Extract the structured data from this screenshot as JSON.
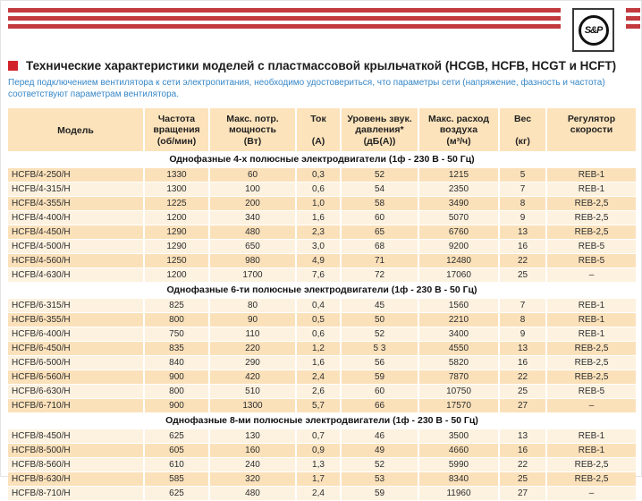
{
  "logo": {
    "text": "S&P"
  },
  "title": "Технические характеристики моделей с пластмассовой крыльчаткой (HCGB, HCFB, HCGT и HCFT)",
  "subtitle": "Перед подключением вентилятора к сети электропитания, необходимо удостовериться, что параметры сети (напряжение, фазность и частота) соответствуют параметрам вентилятора.",
  "colors": {
    "stripe_red": "#c23a3e",
    "bullet_red": "#d2232a",
    "subtitle_blue": "#3787c7",
    "header_bg": "#fce3bb",
    "row_peach": "#fbe1ba",
    "row_cream": "#fdf2e0"
  },
  "table": {
    "columns": [
      {
        "lines": [
          "Модель"
        ],
        "unit": ""
      },
      {
        "lines": [
          "Частота",
          "вращения"
        ],
        "unit": "(об/мин)"
      },
      {
        "lines": [
          "Макс. потр.",
          "мощность"
        ],
        "unit": "(Вт)"
      },
      {
        "lines": [
          "Ток"
        ],
        "unit": "(А)"
      },
      {
        "lines": [
          "Уровень звук.",
          "давления*"
        ],
        "unit": "(дБ(А))"
      },
      {
        "lines": [
          "Макс. расход",
          "воздуха"
        ],
        "unit": "(м³/ч)"
      },
      {
        "lines": [
          "Вес"
        ],
        "unit": "(кг)"
      },
      {
        "lines": [
          "Регулятор",
          "скорости"
        ],
        "unit": ""
      }
    ],
    "sections": [
      {
        "header": "Однофазные 4-х полюсные электродвигатели (1ф - 230 В - 50 Гц)",
        "rows": [
          [
            "HCFB/4-250/H",
            "1330",
            "60",
            "0,3",
            "52",
            "1215",
            "5",
            "REB-1"
          ],
          [
            "HCFB/4-315/H",
            "1300",
            "100",
            "0,6",
            "54",
            "2350",
            "7",
            "REB-1"
          ],
          [
            "HCFB/4-355/H",
            "1225",
            "200",
            "1,0",
            "58",
            "3490",
            "8",
            "REB-2,5"
          ],
          [
            "HCFB/4-400/H",
            "1200",
            "340",
            "1,6",
            "60",
            "5070",
            "9",
            "REB-2,5"
          ],
          [
            "HCFB/4-450/H",
            "1290",
            "480",
            "2,3",
            "65",
            "6760",
            "13",
            "REB-2,5"
          ],
          [
            "HCFB/4-500/H",
            "1290",
            "650",
            "3,0",
            "68",
            "9200",
            "16",
            "REB-5"
          ],
          [
            "HCFB/4-560/H",
            "1250",
            "980",
            "4,9",
            "71",
            "12480",
            "22",
            "REB-5"
          ],
          [
            "HCFB/4-630/H",
            "1200",
            "1700",
            "7,6",
            "72",
            "17060",
            "25",
            "–"
          ]
        ]
      },
      {
        "header": "Однофазные 6-ти полюсные электродвигатели (1ф - 230 В - 50 Гц)",
        "rows": [
          [
            "HCFB/6-315/H",
            "825",
            "80",
            "0,4",
            "45",
            "1560",
            "7",
            "REB-1"
          ],
          [
            "HCFB/6-355/H",
            "800",
            "90",
            "0,5",
            "50",
            "2210",
            "8",
            "REB-1"
          ],
          [
            "HCFB/6-400/H",
            "750",
            "110",
            "0,6",
            "52",
            "3400",
            "9",
            "REB-1"
          ],
          [
            "HCFB/6-450/H",
            "835",
            "220",
            "1,2",
            "5 3",
            "4550",
            "13",
            "REB-2,5"
          ],
          [
            "HCFB/6-500/H",
            "840",
            "290",
            "1,6",
            "56",
            "5820",
            "16",
            "REB-2,5"
          ],
          [
            "HCFB/6-560/H",
            "900",
            "420",
            "2,4",
            "59",
            "7870",
            "22",
            "REB-2,5"
          ],
          [
            "HCFB/6-630/H",
            "800",
            "510",
            "2,6",
            "60",
            "10750",
            "25",
            "REB-5"
          ],
          [
            "HCFB/6-710/H",
            "900",
            "1300",
            "5,7",
            "66",
            "17570",
            "27",
            "–"
          ]
        ]
      },
      {
        "header": "Однофазные 8-ми полюсные электродвигатели (1ф - 230 В - 50 Гц)",
        "rows": [
          [
            "HCFB/8-450/H",
            "625",
            "130",
            "0,7",
            "46",
            "3500",
            "13",
            "REB-1"
          ],
          [
            "HCFB/8-500/H",
            "605",
            "160",
            "0,9",
            "49",
            "4660",
            "16",
            "REB-1"
          ],
          [
            "HCFB/8-560/H",
            "610",
            "240",
            "1,3",
            "52",
            "5990",
            "22",
            "REB-2,5"
          ],
          [
            "HCFB/8-630/H",
            "585",
            "320",
            "1,7",
            "53",
            "8340",
            "25",
            "REB-2,5"
          ],
          [
            "HCFB/8-710/H",
            "625",
            "480",
            "2,4",
            "59",
            "11960",
            "27",
            "–"
          ]
        ]
      }
    ]
  }
}
